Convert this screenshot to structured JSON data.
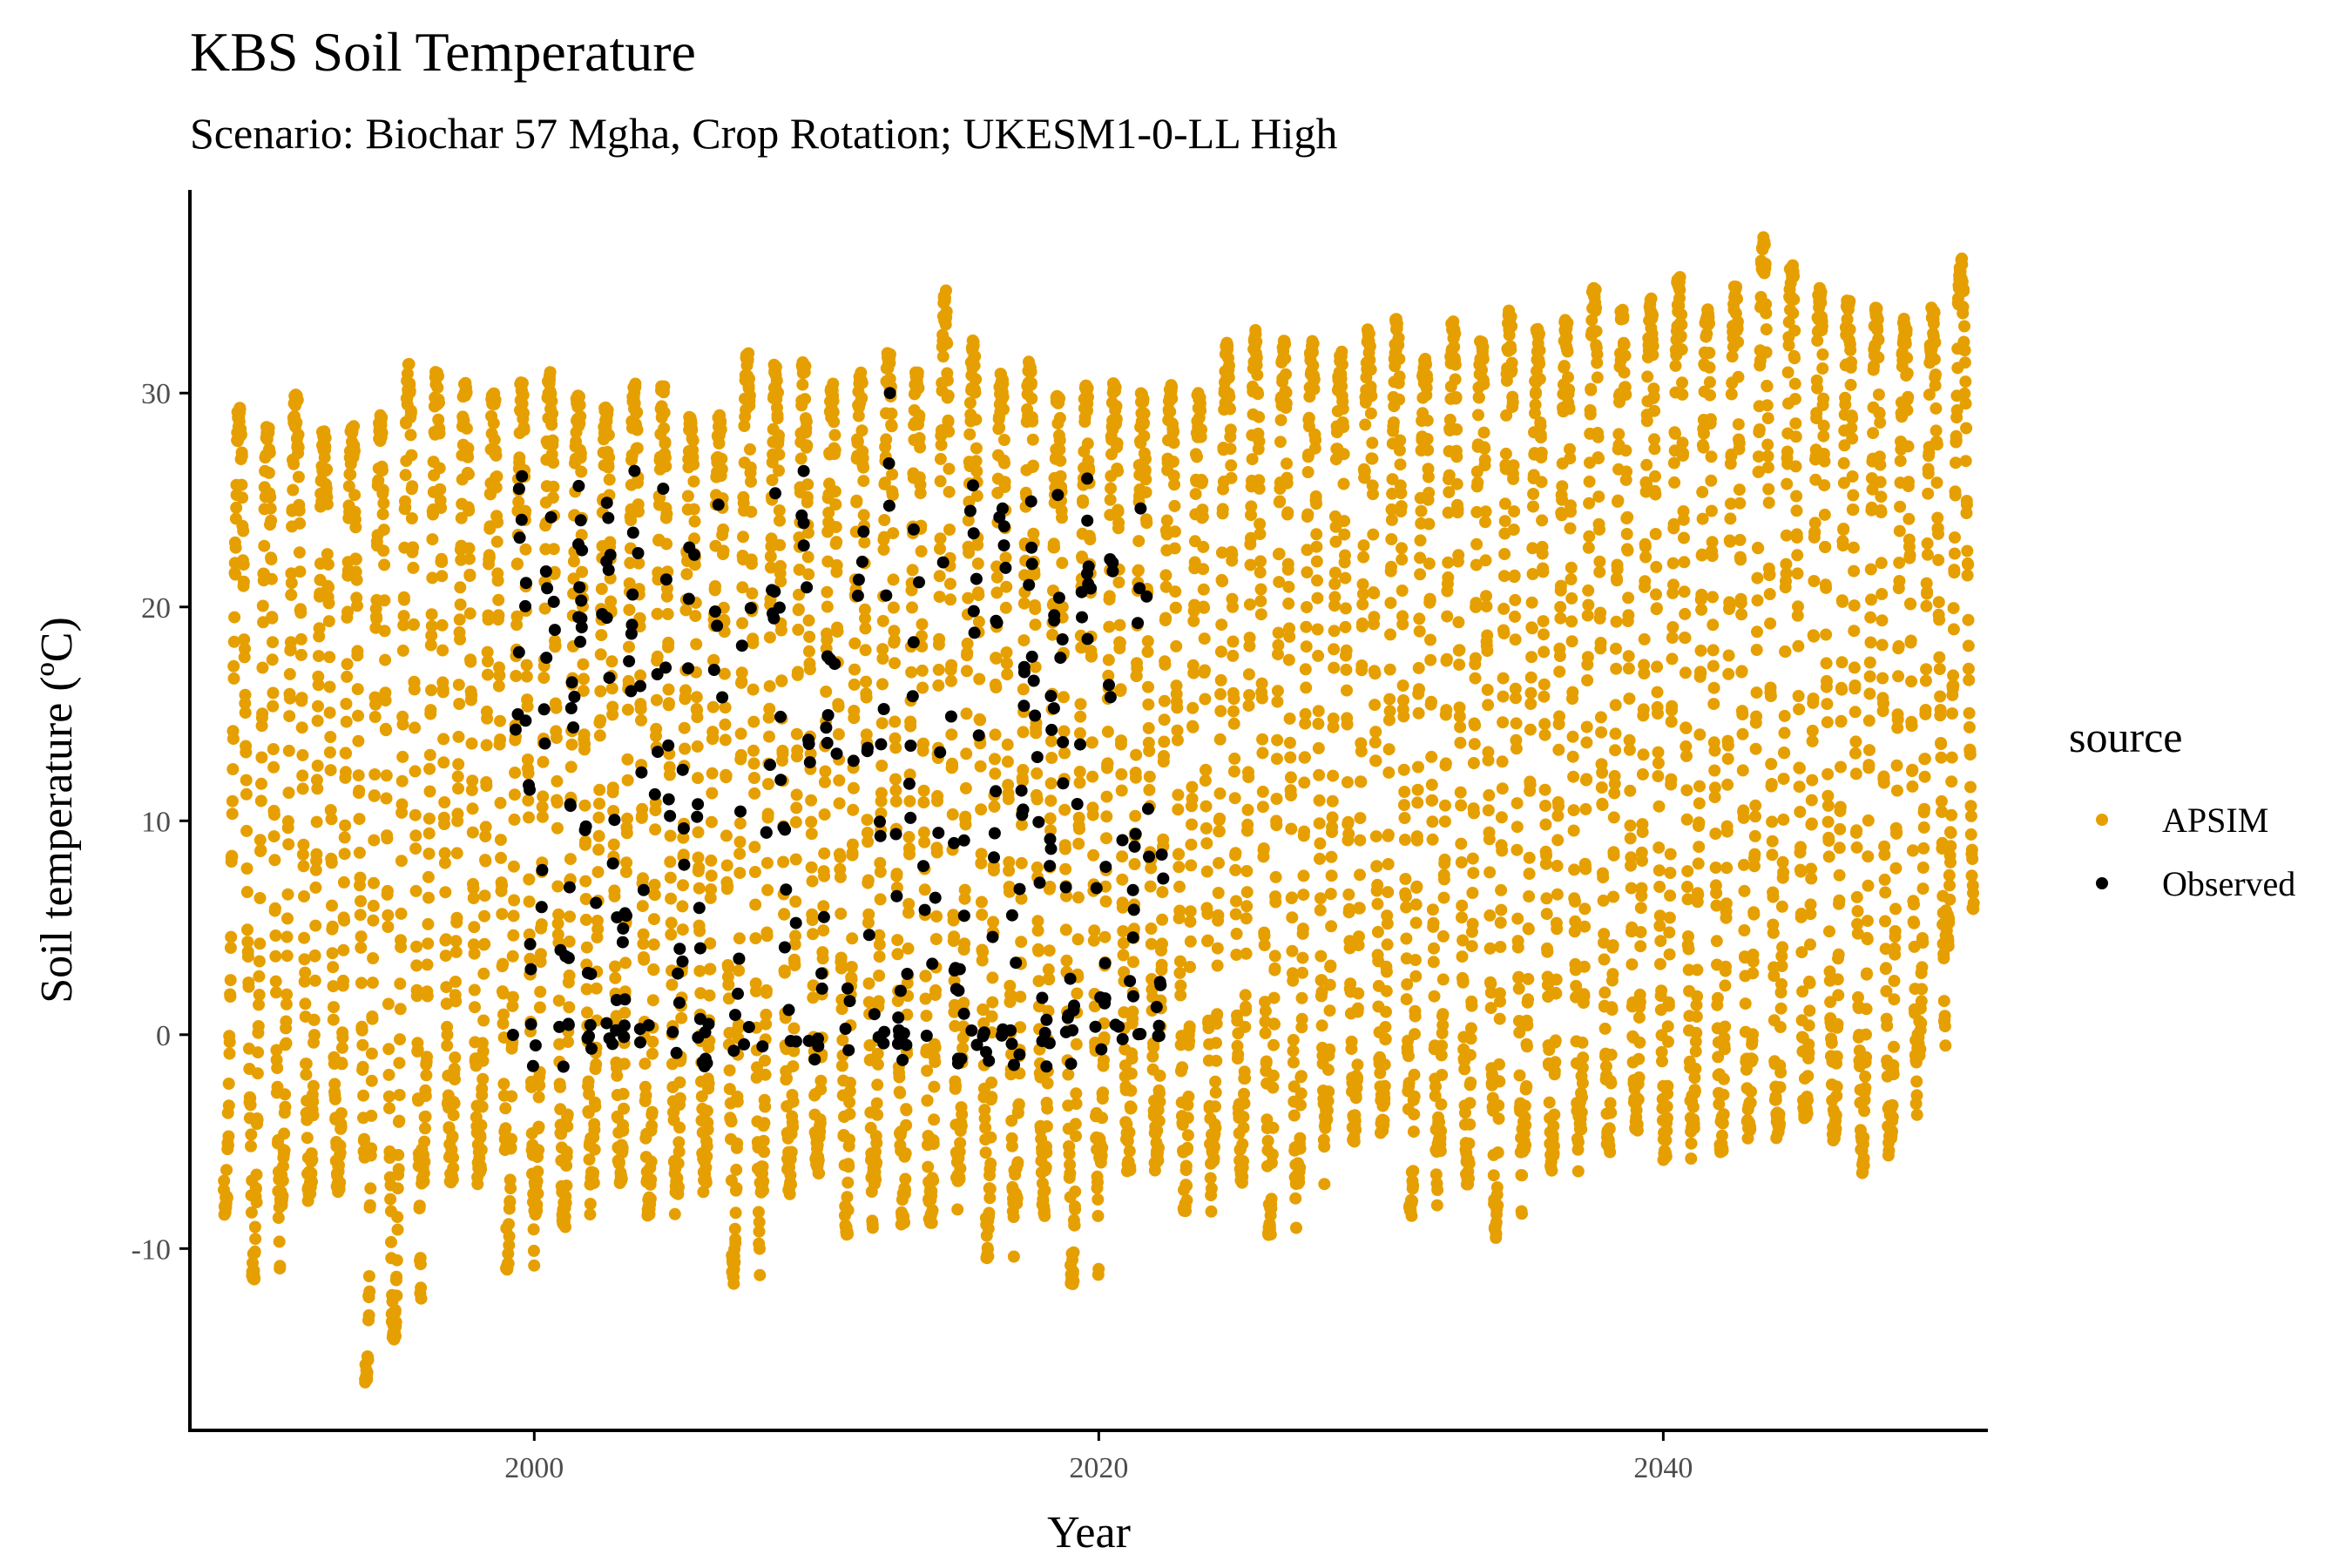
{
  "chart_data": {
    "type": "scatter",
    "title": "KBS Soil Temperature",
    "subtitle": "Scenario: Biochar 57 Mgha, Crop Rotation; UKESM1-0-LL High",
    "xlabel": "Year",
    "ylabel": "Soil temperature (ºC)",
    "xlim": [
      1987.8,
      2051.5
    ],
    "ylim": [
      -18.5,
      39.5
    ],
    "x_ticks": [
      2000,
      2020,
      2040
    ],
    "x_tick_labels": [
      "2000",
      "2020",
      "2040"
    ],
    "y_ticks": [
      -10,
      0,
      10,
      20,
      30
    ],
    "y_tick_labels": [
      "-10",
      "0",
      "10",
      "20",
      "30"
    ],
    "grid": false,
    "legend": {
      "title": "source",
      "position": "right",
      "entries": [
        {
          "label": "APSIM",
          "color": "#E69F00"
        },
        {
          "label": "Observed",
          "color": "#000000"
        }
      ]
    },
    "series": [
      {
        "name": "APSIM",
        "color": "#E69F00",
        "description_by_year": {
          "year_start": 1989,
          "year_end": 2050,
          "yearly_max": [
            29.5,
            28.5,
            30.0,
            28.5,
            28.5,
            29.0,
            31.5,
            31.0,
            30.5,
            30.0,
            30.5,
            31.0,
            30.0,
            29.5,
            30.5,
            30.5,
            29.0,
            29.0,
            32.0,
            31.5,
            31.5,
            30.5,
            31.0,
            32.0,
            31.0,
            34.8,
            32.5,
            31.0,
            31.5,
            30.0,
            30.5,
            30.5,
            30.0,
            30.5,
            30.0,
            32.5,
            33.0,
            32.5,
            32.5,
            32.0,
            33.0,
            33.5,
            32.0,
            33.5,
            32.5,
            34.0,
            33.0,
            33.5,
            35.0,
            34.0,
            34.5,
            35.5,
            34.0,
            35.0,
            37.3,
            36.0,
            35.0,
            34.5,
            34.0,
            33.5,
            34.0,
            36.3
          ],
          "yearly_min": [
            -8.5,
            -11.5,
            -8.0,
            -7.5,
            -7.5,
            -16.3,
            -14.3,
            -7.0,
            -7.0,
            -6.5,
            -11.0,
            -8.5,
            -9.0,
            -7.0,
            -7.0,
            -8.5,
            -7.5,
            -7.0,
            -12.0,
            -7.5,
            -7.5,
            -6.5,
            -9.5,
            -7.0,
            -9.0,
            -9.0,
            -7.0,
            -10.5,
            -8.0,
            -8.5,
            -11.7,
            -6.0,
            -6.5,
            -6.0,
            -8.5,
            -6.0,
            -7.0,
            -9.5,
            -7.0,
            -4.5,
            -5.0,
            -4.5,
            -8.5,
            -5.5,
            -7.0,
            -9.5,
            -5.5,
            -6.5,
            -4.5,
            -5.5,
            -4.5,
            -6.0,
            -4.5,
            -5.5,
            -4.5,
            -5.0,
            -4.0,
            -5.0,
            -6.5,
            -5.0,
            -1.0,
            4.0
          ]
        }
      },
      {
        "name": "Observed",
        "color": "#000000",
        "x_range": [
          1999.0,
          2022.3
        ],
        "y_range": [
          -1.5,
          30.0
        ],
        "description": "scattered observations between 1999 and 2022, ranging roughly -1.5 to 30 ºC"
      }
    ]
  }
}
